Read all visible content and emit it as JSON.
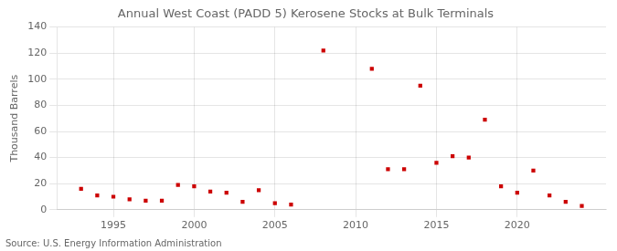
{
  "chart_data": {
    "type": "scatter",
    "title": "Annual West Coast (PADD 5) Kerosene Stocks at Bulk Terminals",
    "ylabel": "Thousand Barrels",
    "annotations": [
      "Source: U.S. Energy Information Administration"
    ],
    "x": [
      1993,
      1994,
      1995,
      1996,
      1997,
      1998,
      1999,
      2000,
      2001,
      2002,
      2003,
      2004,
      2005,
      2006,
      2008,
      2011,
      2012,
      2013,
      2014,
      2015,
      2016,
      2017,
      2018,
      2019,
      2020,
      2021,
      2022,
      2023,
      2024
    ],
    "values": [
      16,
      11,
      10,
      8,
      7,
      7,
      19,
      18,
      14,
      13,
      6,
      15,
      5,
      4,
      122,
      108,
      31,
      31,
      95,
      36,
      41,
      40,
      69,
      18,
      13,
      30,
      11,
      6,
      3
    ],
    "color": "#cc0000",
    "marker": "square",
    "xlim": [
      1991.5,
      2025.5
    ],
    "xticks": [
      1995,
      2000,
      2005,
      2010,
      2015,
      2020
    ],
    "ylim": [
      0,
      140
    ],
    "yticks": [
      0,
      20,
      40,
      60,
      80,
      100,
      120,
      140
    ],
    "grid": true
  }
}
